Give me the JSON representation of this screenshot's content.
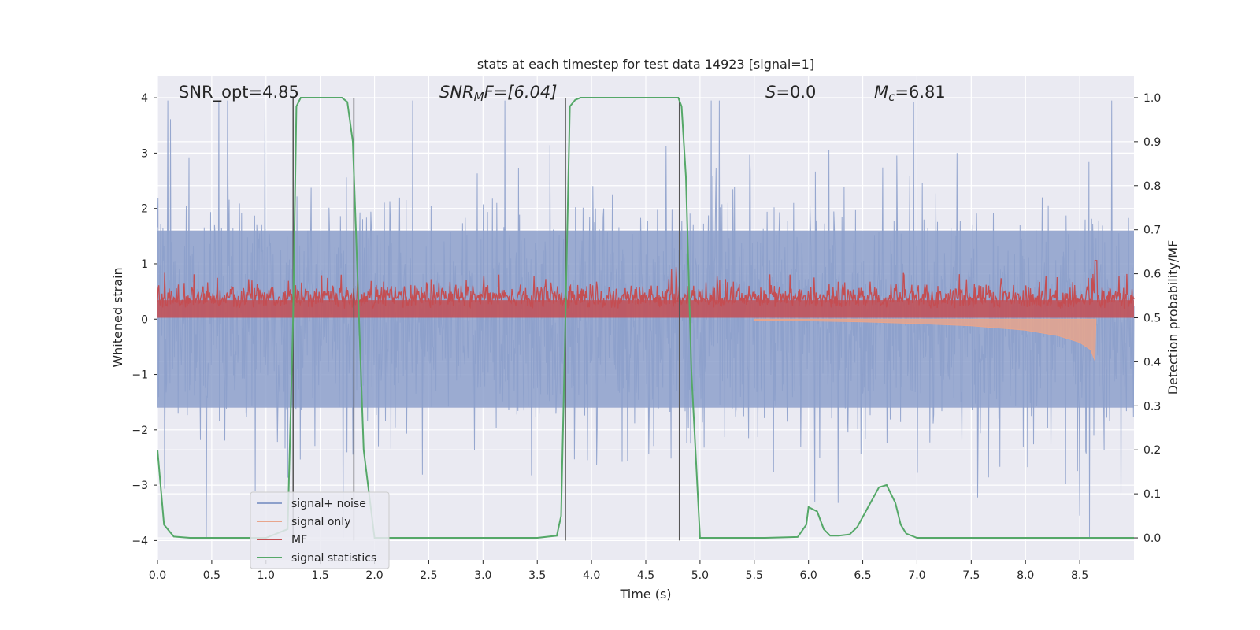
{
  "chart_data": {
    "type": "line",
    "title": "stats at each timestep for test data 14923 [signal=1]",
    "xlabel": "Time (s)",
    "ylabel": "Whitened strain",
    "y2label": "Detection probability/MF",
    "xlim": [
      0,
      9.0
    ],
    "ylim": [
      -4.35,
      4.4
    ],
    "y2lim": [
      -0.05,
      1.05
    ],
    "xticks": [
      "0.0",
      "0.5",
      "1.0",
      "1.5",
      "2.0",
      "2.5",
      "3.0",
      "3.5",
      "4.0",
      "4.5",
      "5.0",
      "5.5",
      "6.0",
      "6.5",
      "7.0",
      "7.5",
      "8.0",
      "8.5"
    ],
    "yticks": [
      "−4",
      "−3",
      "−2",
      "−1",
      "0",
      "1",
      "2",
      "3",
      "4"
    ],
    "y2ticks": [
      "0.0",
      "0.1",
      "0.2",
      "0.3",
      "0.4",
      "0.5",
      "0.6",
      "0.7",
      "0.8",
      "0.9",
      "1.0"
    ],
    "grid": true,
    "legend_position": "lower-left",
    "annotations": {
      "snr_opt": "SNR_opt=4.85",
      "snr_mf_base": "SNR",
      "snr_mf_sub": "M",
      "snr_mf_rest": "F=[6.04]",
      "s_base": "S",
      "s_rest": "=0.0",
      "mc_base": "M",
      "mc_sub": "c",
      "mc_rest": "=6.81"
    },
    "vertical_markers_x": [
      1.25,
      1.81,
      3.76,
      4.81
    ],
    "series": [
      {
        "name": "signal+ noise",
        "color": "#8da0cb",
        "description_values": "noise band roughly −2 to +2 with spikes up to about ±3.9 across 0–9 s"
      },
      {
        "name": "signal only",
        "color": "#e8a58c",
        "x": [
          5.5,
          6.0,
          6.5,
          7.0,
          7.5,
          8.0,
          8.3,
          8.5,
          8.6,
          8.64,
          8.65
        ],
        "amplitude": [
          0.02,
          0.03,
          0.05,
          0.08,
          0.12,
          0.2,
          0.3,
          0.42,
          0.55,
          0.75,
          0.0
        ]
      },
      {
        "name": "MF",
        "color": "#c44e52",
        "description_values": "matched filter output fluctuating between about 0.0 and 0.6 with a peak near 1.0 at 8.65 s"
      },
      {
        "name": "signal statistics",
        "color": "#55a868",
        "x": [
          0.0,
          0.06,
          0.15,
          0.3,
          1.0,
          1.2,
          1.25,
          1.28,
          1.32,
          1.4,
          1.7,
          1.75,
          1.8,
          1.85,
          1.9,
          2.0,
          3.5,
          3.68,
          3.72,
          3.76,
          3.8,
          3.85,
          3.9,
          4.0,
          4.5,
          4.75,
          4.8,
          4.83,
          4.87,
          4.92,
          5.0,
          5.6,
          5.9,
          5.98,
          6.0,
          6.08,
          6.14,
          6.2,
          6.28,
          6.38,
          6.45,
          6.55,
          6.65,
          6.72,
          6.8,
          6.85,
          6.9,
          7.0,
          8.0,
          9.0
        ],
        "y": [
          0.2,
          0.03,
          0.003,
          0.0,
          0.0,
          0.02,
          0.5,
          0.98,
          1.0,
          1.0,
          1.0,
          0.99,
          0.9,
          0.55,
          0.2,
          0.0,
          0.0,
          0.005,
          0.05,
          0.5,
          0.98,
          0.995,
          1.0,
          1.0,
          1.0,
          1.0,
          1.0,
          0.98,
          0.82,
          0.38,
          0.0,
          0.0,
          0.002,
          0.03,
          0.07,
          0.06,
          0.02,
          0.005,
          0.005,
          0.008,
          0.025,
          0.07,
          0.115,
          0.12,
          0.08,
          0.03,
          0.01,
          0.0,
          0.0,
          0.0
        ]
      }
    ]
  }
}
